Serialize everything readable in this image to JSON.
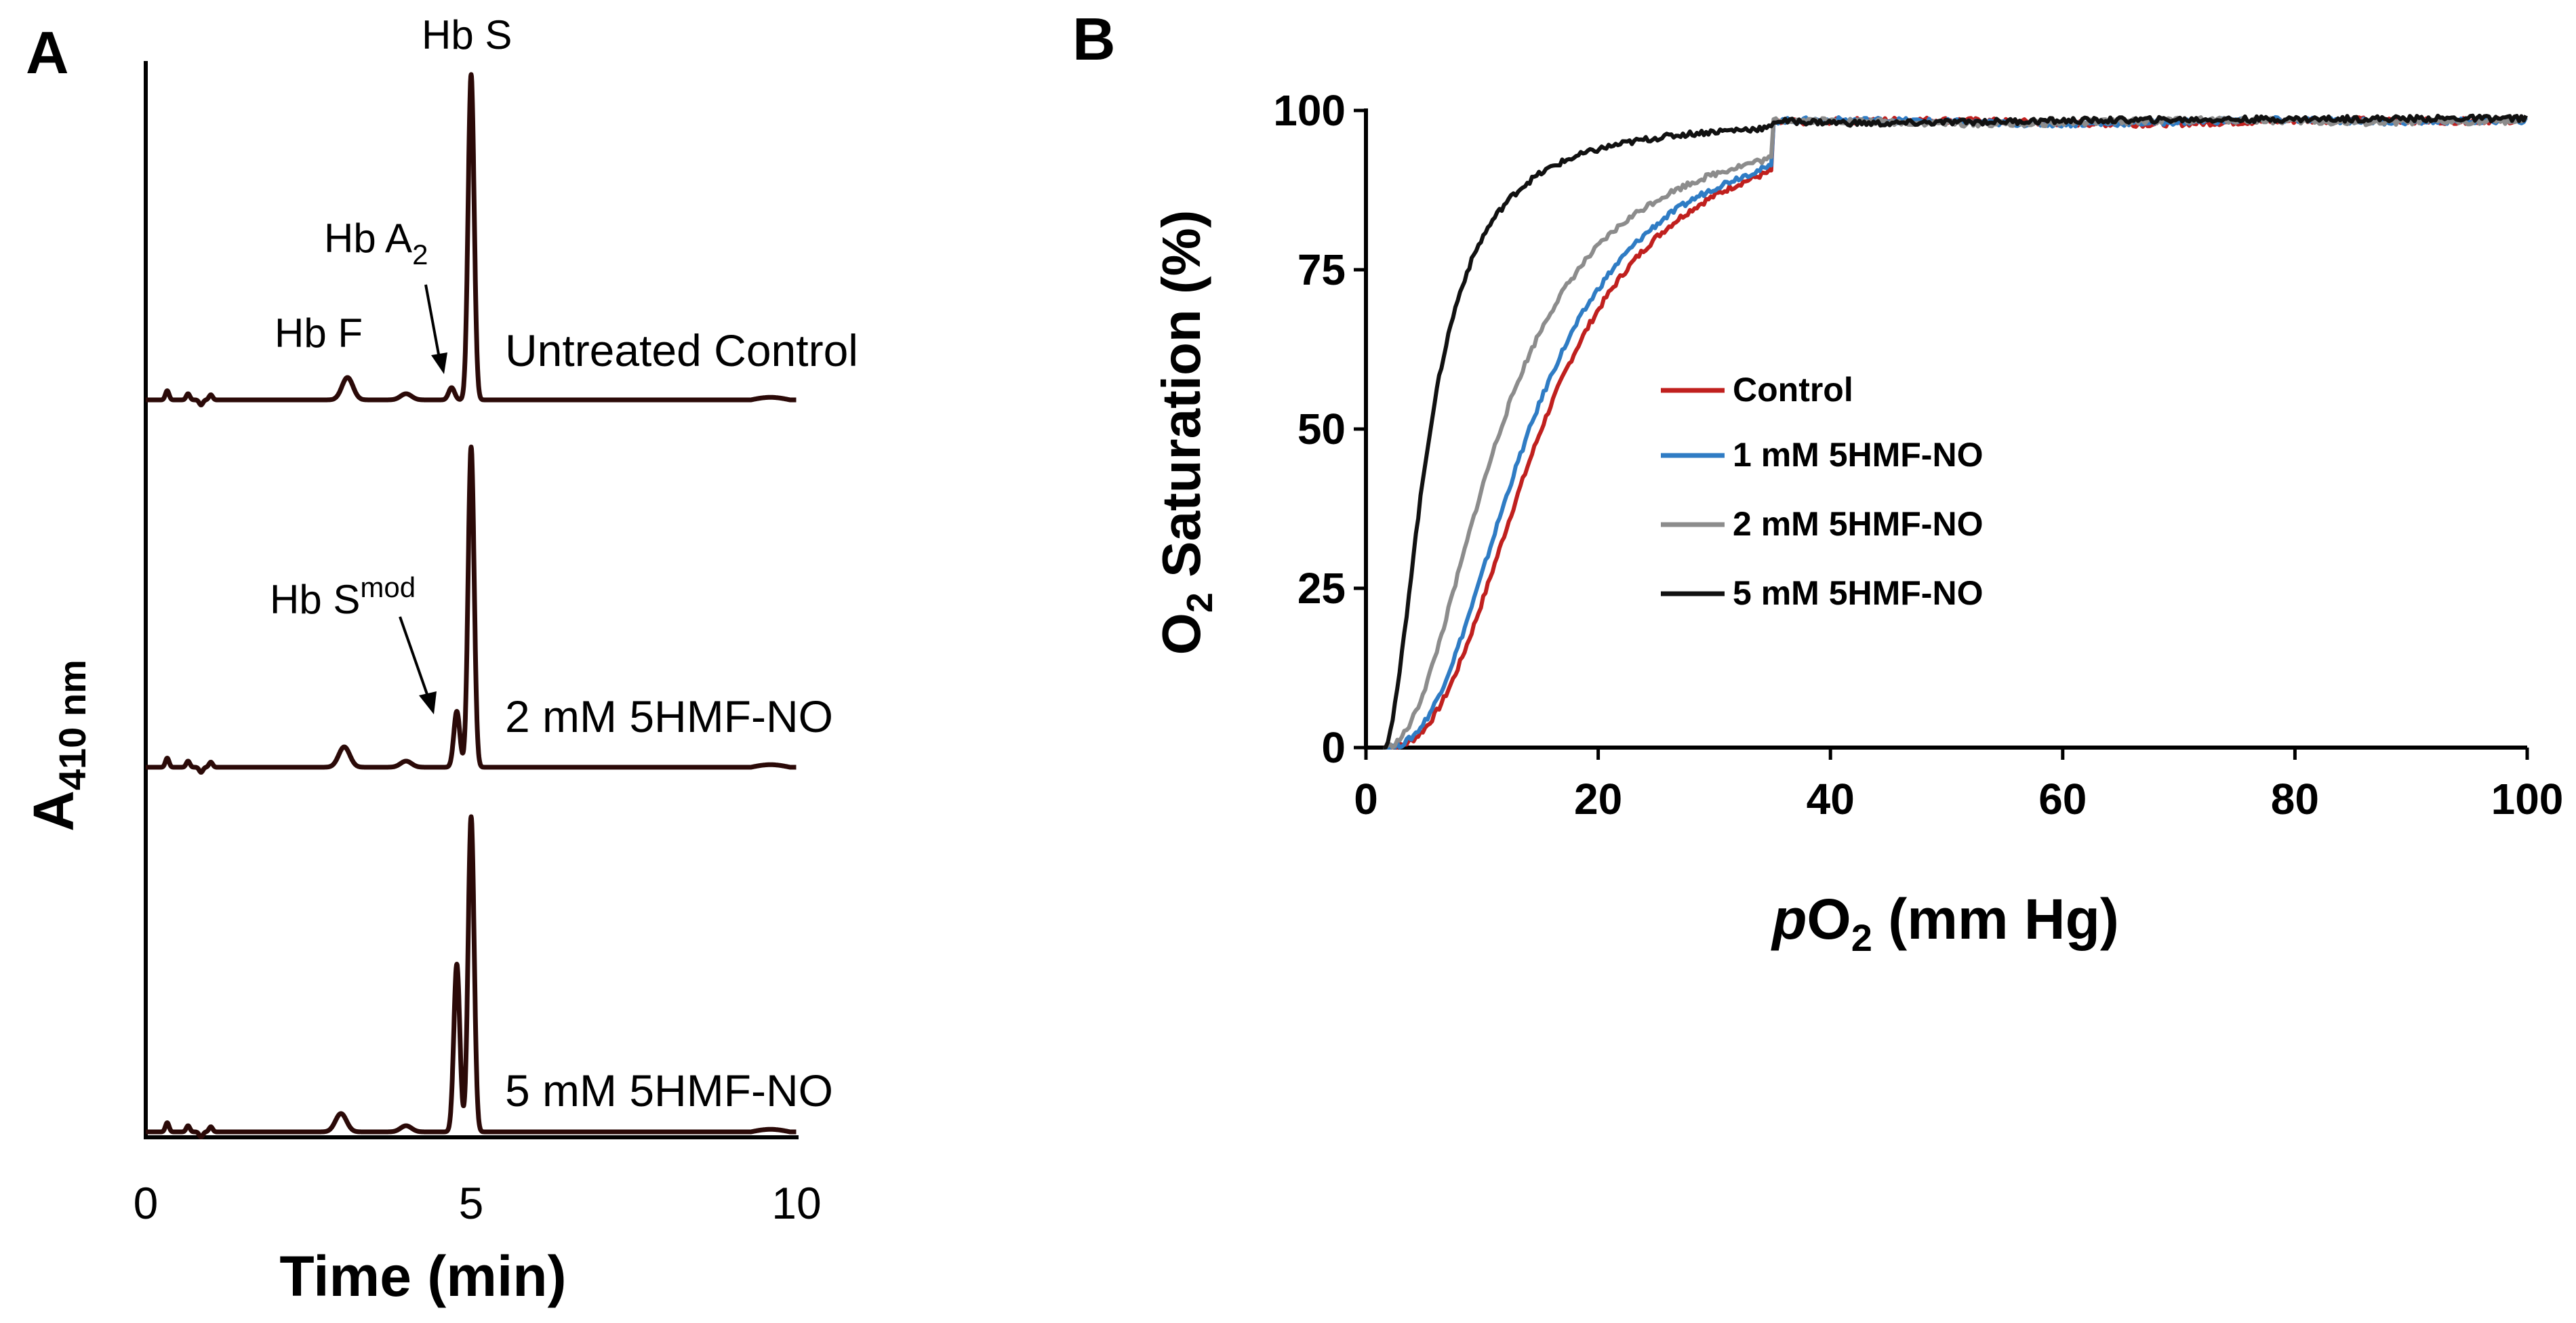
{
  "chart_data": [
    {
      "panel": "A",
      "type": "line",
      "xlabel": "Time (min)",
      "ylabel_main": "A",
      "ylabel_sub": "410 nm",
      "xlim": [
        0,
        10
      ],
      "xticks": [
        "0",
        "5",
        "10"
      ],
      "line_color": "#2b0a08",
      "traces": [
        {
          "name": "Untreated Control",
          "peaks": [
            {
              "t": 0.33,
              "h": 0.09
            },
            {
              "t": 0.65,
              "h": 0.06
            },
            {
              "t": 0.85,
              "h": -0.05
            },
            {
              "t": 1.0,
              "h": 0.05
            },
            {
              "t": 3.1,
              "h": 0.22
            },
            {
              "t": 4.0,
              "h": 0.06
            },
            {
              "t": 4.7,
              "h": 0.12
            },
            {
              "t": 5.0,
              "h": 3.2
            }
          ],
          "annotations": [
            {
              "text": "Hb F",
              "sub": "",
              "sup": ""
            },
            {
              "text": "Hb A",
              "sub": "2",
              "sup": ""
            },
            {
              "text": "Hb S",
              "sub": "",
              "sup": ""
            }
          ]
        },
        {
          "name": "2 mM 5HMF-NO",
          "peaks": [
            {
              "t": 0.33,
              "h": 0.09
            },
            {
              "t": 0.65,
              "h": 0.06
            },
            {
              "t": 0.85,
              "h": -0.05
            },
            {
              "t": 1.0,
              "h": 0.05
            },
            {
              "t": 3.05,
              "h": 0.2
            },
            {
              "t": 4.0,
              "h": 0.06
            },
            {
              "t": 4.78,
              "h": 0.55
            },
            {
              "t": 5.0,
              "h": 3.15
            }
          ],
          "annotations": [
            {
              "text": "Hb S",
              "sub": "",
              "sup": "mod"
            }
          ]
        },
        {
          "name": "5 mM 5HMF-NO",
          "peaks": [
            {
              "t": 0.33,
              "h": 0.09
            },
            {
              "t": 0.65,
              "h": 0.06
            },
            {
              "t": 0.85,
              "h": -0.05
            },
            {
              "t": 1.0,
              "h": 0.05
            },
            {
              "t": 3.0,
              "h": 0.18
            },
            {
              "t": 4.0,
              "h": 0.06
            },
            {
              "t": 4.78,
              "h": 1.65
            },
            {
              "t": 5.0,
              "h": 3.1
            }
          ],
          "annotations": []
        }
      ]
    },
    {
      "panel": "B",
      "type": "line",
      "xlabel_prefix": "p",
      "xlabel_main": "O",
      "xlabel_sub": "2",
      "xlabel_suffix": " (mm Hg)",
      "ylabel_main": "O",
      "ylabel_sub": "2",
      "ylabel_suffix": " Saturation (%)",
      "xlim": [
        0,
        100
      ],
      "ylim": [
        0,
        100
      ],
      "xticks": [
        0,
        20,
        40,
        60,
        80,
        100
      ],
      "yticks": [
        0,
        25,
        50,
        75,
        100
      ],
      "legend_position": "center",
      "series": [
        {
          "name": "Control",
          "color": "#c0201e",
          "p50": 15.0,
          "n": 2.6,
          "x0": 1.5
        },
        {
          "name": "1 mM 5HMF-NO",
          "color": "#2f7cc4",
          "p50": 14.0,
          "n": 2.5,
          "x0": 1.5
        },
        {
          "name": "2 mM 5HMF-NO",
          "color": "#8c8c8c",
          "p50": 11.5,
          "n": 2.2,
          "x0": 1.5
        },
        {
          "name": "5 mM 5HMF-NO",
          "color": "#111111",
          "p50": 5.5,
          "n": 1.9,
          "x0": 1.5
        }
      ]
    }
  ]
}
